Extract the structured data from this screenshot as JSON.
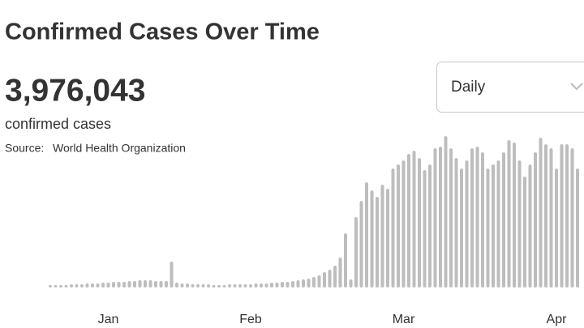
{
  "title": "Confirmed Cases Over Time",
  "total": "3,976,043",
  "total_label": "confirmed cases",
  "source_label": "Source:",
  "source": "World Health Organization",
  "dropdown": "Daily",
  "chart_data": {
    "type": "bar",
    "color": "#bdbdbd",
    "ylim": [
      0,
      100000
    ],
    "categories": [
      null,
      null,
      null,
      null,
      null,
      null,
      null,
      null,
      null,
      null,
      null,
      "Jan",
      null,
      null,
      null,
      null,
      null,
      null,
      null,
      null,
      null,
      null,
      null,
      null,
      null,
      null,
      null,
      null,
      null,
      null,
      null,
      null,
      null,
      null,
      null,
      null,
      null,
      null,
      "Feb",
      null,
      null,
      null,
      null,
      null,
      null,
      null,
      null,
      null,
      null,
      null,
      null,
      null,
      null,
      null,
      null,
      null,
      null,
      null,
      null,
      null,
      null,
      null,
      null,
      null,
      null,
      null,
      null,
      "Mar",
      null,
      null,
      null,
      null,
      null,
      null,
      null,
      null,
      null,
      null,
      null,
      null,
      null,
      null,
      null,
      null,
      null,
      null,
      null,
      null,
      null,
      null,
      null,
      null,
      null,
      null,
      null,
      null,
      "Apr",
      null,
      null,
      null,
      null
    ],
    "values": [
      540,
      540,
      540,
      540,
      1080,
      1080,
      1080,
      1620,
      1620,
      1620,
      2160,
      2160,
      2700,
      2700,
      2700,
      3240,
      3240,
      3780,
      3780,
      3780,
      3240,
      3240,
      3240,
      16200,
      2160,
      1620,
      1620,
      1080,
      1080,
      1080,
      1080,
      540,
      540,
      540,
      1080,
      1080,
      1080,
      1080,
      1080,
      1620,
      1620,
      1620,
      2160,
      2160,
      2700,
      2700,
      3240,
      3780,
      4320,
      4860,
      5940,
      7020,
      9180,
      10800,
      13500,
      18900,
      35100,
      4320,
      45900,
      56700,
      69120,
      63720,
      59400,
      67500,
      64800,
      78300,
      81000,
      83700,
      88020,
      90180,
      85320,
      77220,
      81000,
      91800,
      92880,
      99900,
      91800,
      85320,
      78300,
      83700,
      91800,
      92880,
      89100,
      78300,
      81000,
      83700,
      89100,
      97200,
      95580,
      83700,
      72900,
      81000,
      89100,
      98820,
      94500,
      91800,
      78300,
      94500,
      94500,
      91800,
      78300
    ]
  }
}
